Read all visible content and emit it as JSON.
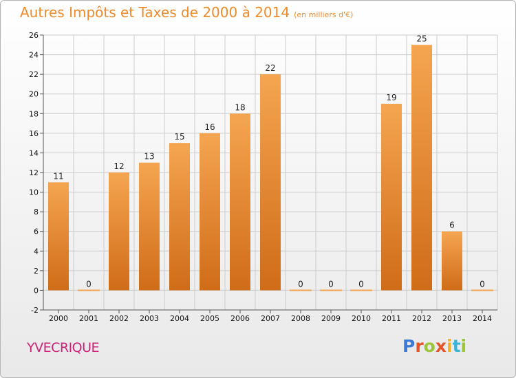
{
  "title": "Autres Impôts et Taxes de 2000 à 2014",
  "unit_note": "(en milliers d'€)",
  "commune": "YVECRIQUE",
  "logo": {
    "letters": [
      {
        "ch": "P",
        "color": "#3b7ad6"
      },
      {
        "ch": "r",
        "color": "#e8542a"
      },
      {
        "ch": "o",
        "color": "#9bc43b"
      },
      {
        "ch": "x",
        "color": "#e8542a"
      },
      {
        "ch": "i",
        "color": "#f2b126"
      },
      {
        "ch": "t",
        "color": "#3bb3d6"
      },
      {
        "ch": "i",
        "color": "#9bc43b"
      }
    ]
  },
  "colors": {
    "bar_light": "#f5a550",
    "bar_dark": "#d06c18",
    "title": "#ee8a2a",
    "commune": "#cc2277",
    "grid": "#cccccc"
  },
  "chart_data": {
    "type": "bar",
    "categories": [
      "2000",
      "2001",
      "2002",
      "2003",
      "2004",
      "2005",
      "2006",
      "2007",
      "2008",
      "2009",
      "2010",
      "2011",
      "2012",
      "2013",
      "2014"
    ],
    "values": [
      11,
      0,
      12,
      13,
      15,
      16,
      18,
      22,
      0,
      0,
      0,
      19,
      25,
      6,
      0
    ],
    "ylim": [
      -2,
      26
    ],
    "yticks": [
      -2,
      0,
      2,
      4,
      6,
      8,
      10,
      12,
      14,
      16,
      18,
      20,
      22,
      24,
      26
    ],
    "grid": true,
    "xlabel": "",
    "ylabel": ""
  }
}
